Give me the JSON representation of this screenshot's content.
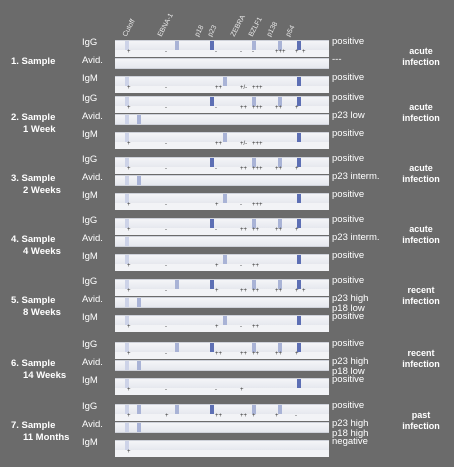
{
  "header": [
    "Cutoff",
    "EBNA-1",
    "p18",
    "p23",
    "ZEBRA",
    "BZLF1",
    "p138",
    "p54"
  ],
  "rows_labels": [
    "IgG",
    "Avid.",
    "IgM"
  ],
  "samples": [
    {
      "title": "1. Sample",
      "subtitle": "",
      "rows": [
        {
          "result": "positive",
          "marks": "+ - - - - +++ + +",
          "bands": [
            1,
            0,
            2,
            3,
            0,
            5,
            6,
            7
          ]
        },
        {
          "result": "---",
          "marks": "",
          "bands": []
        },
        {
          "result": "positive",
          "marks": "+ - ++ +/- +++",
          "bands": [
            1,
            0,
            0,
            0,
            5,
            0,
            0,
            7
          ]
        }
      ],
      "interpretation": "acute infection"
    },
    {
      "title": "2. Sample",
      "subtitle": "1 Week",
      "rows": [
        {
          "result": "positive",
          "marks": "+ - - ++ +++ ++ +",
          "bands": [
            1,
            0,
            0,
            3,
            0,
            5,
            6,
            7
          ]
        },
        {
          "result": "p23 low",
          "marks": "",
          "bands": [
            3,
            5
          ]
        },
        {
          "result": "positive",
          "marks": "+ - ++ +/- +++",
          "bands": [
            1,
            0,
            0,
            0,
            5,
            0,
            0,
            7
          ]
        }
      ],
      "interpretation": "acute infection"
    },
    {
      "title": "3. Sample",
      "subtitle": "2 Weeks",
      "rows": [
        {
          "result": "positive",
          "marks": "+ - - ++ +++ ++ +",
          "bands": [
            1,
            0,
            0,
            3,
            0,
            5,
            6,
            7
          ]
        },
        {
          "result": "p23 interm.",
          "marks": "",
          "bands": [
            3,
            5
          ]
        },
        {
          "result": "positive",
          "marks": "+ - + - +++",
          "bands": [
            1,
            0,
            0,
            0,
            5,
            0,
            0,
            7
          ]
        }
      ],
      "interpretation": "acute infection"
    },
    {
      "title": "4. Sample",
      "subtitle": "4 Weeks",
      "rows": [
        {
          "result": "positive",
          "marks": "+ - - ++ ++ ++ +",
          "bands": [
            1,
            0,
            0,
            3,
            0,
            5,
            6,
            7
          ]
        },
        {
          "result": "p23 interm.",
          "marks": "",
          "bands": [
            3
          ]
        },
        {
          "result": "positive",
          "marks": "+ - + - ++",
          "bands": [
            1,
            0,
            0,
            0,
            5,
            0,
            0,
            7
          ]
        }
      ],
      "interpretation": "acute infection"
    },
    {
      "title": "5. Sample",
      "subtitle": "8 Weeks",
      "rows": [
        {
          "result": "positive",
          "marks": "+ - + ++ ++ ++ + +",
          "bands": [
            1,
            0,
            2,
            3,
            0,
            5,
            6,
            7
          ]
        },
        {
          "result": "p23 high\np18 low",
          "marks": "",
          "bands": [
            2,
            3
          ]
        },
        {
          "result": "positive",
          "marks": "+ - + - ++",
          "bands": [
            1,
            0,
            0,
            0,
            5,
            0,
            0,
            7
          ]
        }
      ],
      "interpretation": "recent infection"
    },
    {
      "title": "6. Sample",
      "subtitle": "14 Weeks",
      "rows": [
        {
          "result": "positive",
          "marks": "+ - ++ ++ ++ ++ +",
          "bands": [
            1,
            0,
            2,
            3,
            0,
            5,
            6,
            7
          ]
        },
        {
          "result": "p23 high\np18 low",
          "marks": "",
          "bands": [
            2,
            3
          ]
        },
        {
          "result": "positive",
          "marks": "+ - - +",
          "bands": [
            1,
            0,
            0,
            0,
            0,
            0,
            0,
            7
          ]
        }
      ],
      "interpretation": "recent infection"
    },
    {
      "title": "7. Sample",
      "subtitle": "11 Months",
      "rows": [
        {
          "result": "positive",
          "marks": "+ + ++ ++ + + -",
          "bands": [
            1,
            2,
            2,
            3,
            0,
            5,
            6,
            0
          ]
        },
        {
          "result": "p23 high\np18 high",
          "marks": "",
          "bands": [
            2,
            3
          ]
        },
        {
          "result": "negative",
          "marks": "+",
          "bands": [
            1
          ]
        }
      ],
      "interpretation": "past infection"
    }
  ]
}
